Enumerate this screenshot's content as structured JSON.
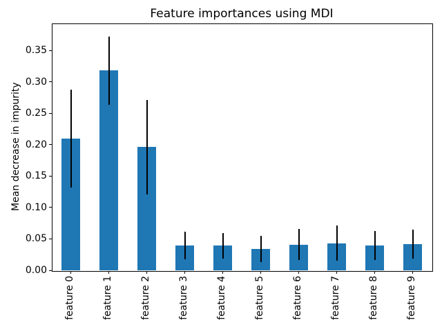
{
  "chart_data": {
    "type": "bar",
    "title": "Feature importances using MDI",
    "xlabel": "",
    "ylabel": "Mean decrease in impurity",
    "categories": [
      "feature 0",
      "feature 1",
      "feature 2",
      "feature 3",
      "feature 4",
      "feature 5",
      "feature 6",
      "feature 7",
      "feature 8",
      "feature 9"
    ],
    "values": [
      0.21,
      0.318,
      0.196,
      0.04,
      0.039,
      0.034,
      0.041,
      0.043,
      0.04,
      0.042
    ],
    "errors": [
      0.078,
      0.054,
      0.075,
      0.022,
      0.02,
      0.021,
      0.025,
      0.028,
      0.023,
      0.023
    ],
    "error_bars": true,
    "ylim": [
      0,
      0.393
    ],
    "ytick_values": [
      0,
      0.05,
      0.1,
      0.15,
      0.2,
      0.25,
      0.3,
      0.35
    ],
    "ytick_labels": [
      "0.00",
      "0.05",
      "0.10",
      "0.15",
      "0.20",
      "0.25",
      "0.30",
      "0.35"
    ],
    "x_tick_rotation": 90,
    "bar_width_fraction": 0.5,
    "grid": false,
    "legend": false,
    "bar_color": "#1f77b4",
    "error_color": "#000000",
    "axis_color": "#000000",
    "background": "#ffffff"
  }
}
